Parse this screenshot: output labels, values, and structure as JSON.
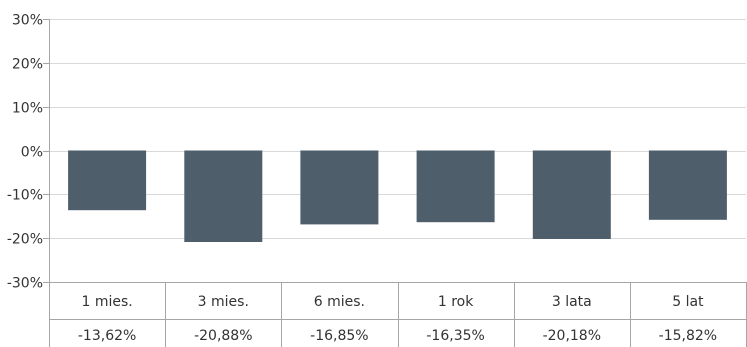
{
  "chart_data": {
    "type": "bar",
    "categories": [
      "1 mies.",
      "3 mies.",
      "6 mies.",
      "1 rok",
      "3 lata",
      "5 lat"
    ],
    "values": [
      -13.62,
      -20.88,
      -16.85,
      -16.35,
      -20.18,
      -15.82
    ],
    "value_labels": [
      "-13,62%",
      "-20,88%",
      "-16,85%",
      "-16,35%",
      "-20,18%",
      "-15,82%"
    ],
    "ylim": [
      -30,
      30
    ],
    "yticks": [
      30,
      20,
      10,
      0,
      -10,
      -20,
      -30
    ],
    "ytick_labels": [
      "30%",
      "20%",
      "10%",
      "0%",
      "-10%",
      "-20%",
      "-30%"
    ],
    "grid": true,
    "colors": {
      "bar": "#4e5e6b",
      "grid": "#d9d9d9",
      "axis": "#a6a6a6"
    }
  }
}
